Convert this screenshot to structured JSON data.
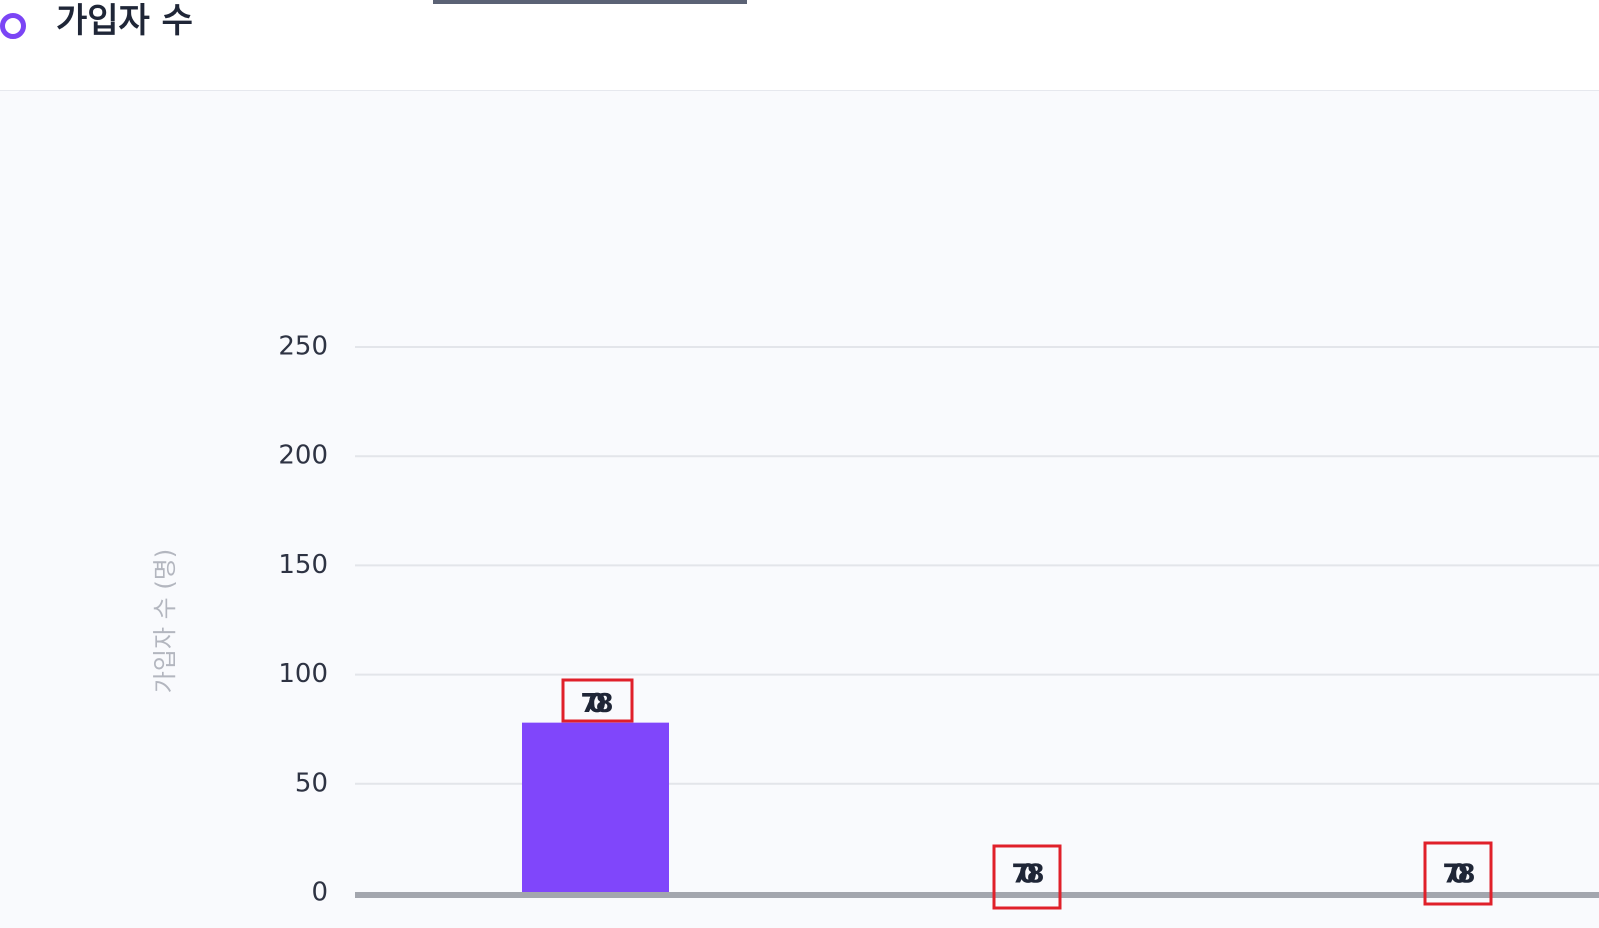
{
  "title": "가입자 수",
  "chart_data": {
    "type": "bar",
    "y_label": "가입자 수 (명)",
    "categories": [
      null,
      null,
      null
    ],
    "values": [
      78,
      0,
      0
    ],
    "color": "#8046fb",
    "ylim": [
      0,
      250
    ],
    "yticks": [
      0,
      50,
      100,
      150,
      200,
      250
    ],
    "grid": true
  }
}
